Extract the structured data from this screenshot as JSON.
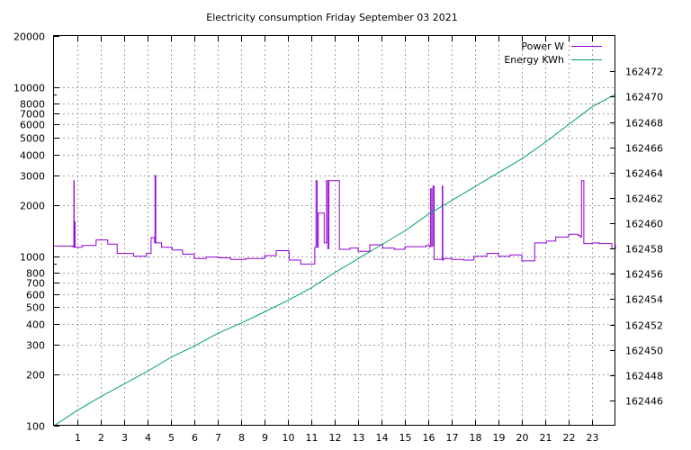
{
  "chart_data": {
    "type": "line",
    "title": "Electricity consumption Friday September 03 2021",
    "xlim": [
      0,
      24
    ],
    "x_ticks": [
      1,
      2,
      3,
      4,
      5,
      6,
      7,
      8,
      9,
      10,
      11,
      12,
      13,
      14,
      15,
      16,
      17,
      18,
      19,
      20,
      21,
      22,
      23
    ],
    "y_left": {
      "scale": "log",
      "range": [
        100,
        20000
      ],
      "ticks": [
        100,
        200,
        300,
        400,
        500,
        600,
        700,
        800,
        1000,
        2000,
        3000,
        4000,
        5000,
        6000,
        7000,
        8000,
        10000,
        20000
      ]
    },
    "y_right": {
      "scale": "linear",
      "range": [
        162444.0,
        162474.8
      ],
      "ticks": [
        162446,
        162448,
        162450,
        162452,
        162454,
        162456,
        162458,
        162460,
        162462,
        162464,
        162466,
        162468,
        162470,
        162472
      ]
    },
    "grid": true,
    "legend_position": "top-right",
    "series": [
      {
        "name": "Power W",
        "axis": "left",
        "color": "#9400d3",
        "x": [
          0,
          0.8,
          0.85,
          0.86,
          0.88,
          0.9,
          0.92,
          1.2,
          1.8,
          2.3,
          2.7,
          3.4,
          3.95,
          4.15,
          4.3,
          4.32,
          4.35,
          4.6,
          5.05,
          5.5,
          6.0,
          6.5,
          7.05,
          7.55,
          8.2,
          9.0,
          9.5,
          10.05,
          10.55,
          11.15,
          11.2,
          11.25,
          11.3,
          11.55,
          11.6,
          11.65,
          11.7,
          11.75,
          12.2,
          12.65,
          13.0,
          13.5,
          14.05,
          14.55,
          15.0,
          15.5,
          15.9,
          16.05,
          16.1,
          16.15,
          16.2,
          16.25,
          16.3,
          16.55,
          16.6,
          16.62,
          16.65,
          17.0,
          17.5,
          17.95,
          18.5,
          19.0,
          19.5,
          19.8,
          20.0,
          20.55,
          21.05,
          21.45,
          22.0,
          22.4,
          22.5,
          22.55,
          22.65,
          23.0,
          23.3,
          23.85,
          24.0
        ],
        "y": [
          1150,
          1140,
          2800,
          1130,
          1600,
          1130,
          1130,
          1160,
          1250,
          1180,
          1040,
          1000,
          1040,
          1290,
          1200,
          3000,
          1200,
          1130,
          1090,
          1030,
          970,
          990,
          980,
          960,
          970,
          1010,
          1080,
          950,
          900,
          1130,
          2800,
          1130,
          1800,
          1200,
          1200,
          2800,
          1110,
          2800,
          1100,
          1120,
          1070,
          1170,
          1120,
          1100,
          1140,
          1140,
          1160,
          1140,
          2500,
          1150,
          2600,
          960,
          960,
          960,
          2600,
          950,
          970,
          960,
          950,
          1000,
          1040,
          1000,
          1020,
          1020,
          940,
          1200,
          1230,
          1300,
          1350,
          1330,
          1300,
          2800,
          1190,
          1200,
          1190,
          1110,
          1170
        ]
      },
      {
        "name": "Energy KWh",
        "axis": "right",
        "color": "#009e73",
        "x": [
          0,
          1,
          2,
          3,
          4,
          5,
          6,
          7,
          8,
          9,
          10,
          11,
          12,
          13,
          14,
          15,
          16,
          17,
          18,
          19,
          20,
          21,
          22,
          23,
          24
        ],
        "y": [
          162444.0,
          162445.2,
          162446.3,
          162447.3,
          162448.3,
          162449.4,
          162450.3,
          162451.3,
          162452.1,
          162453.0,
          162453.9,
          162454.9,
          162456.1,
          162457.2,
          162458.3,
          162459.4,
          162460.7,
          162461.8,
          162462.9,
          162464.0,
          162465.1,
          162466.4,
          162467.8,
          162469.2,
          162470.2
        ]
      }
    ]
  }
}
